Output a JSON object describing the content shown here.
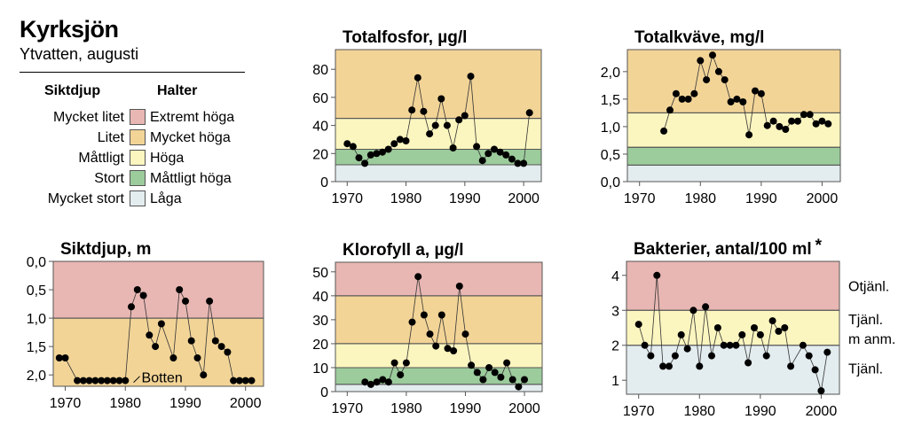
{
  "header": {
    "title": "Kyrksjön",
    "subtitle": "Ytvatten, augusti"
  },
  "legend": {
    "col1_heading": "Siktdjup",
    "col2_heading": "Halter",
    "rows": [
      {
        "siktdjup": "Mycket litet",
        "halter": "Extremt höga",
        "color": "#e8b7b3"
      },
      {
        "siktdjup": "Litet",
        "halter": "Mycket höga",
        "color": "#f2d497"
      },
      {
        "siktdjup": "Måttligt",
        "halter": "Höga",
        "color": "#fbf5bf"
      },
      {
        "siktdjup": "Stort",
        "halter": "Måttligt höga",
        "color": "#9ccb9c"
      },
      {
        "siktdjup": "Mycket stort",
        "halter": "Låga",
        "color": "#e3ecee"
      }
    ]
  },
  "chart_data": [
    {
      "type": "line",
      "title": "Totalfosfor, µg/l",
      "xlim": [
        1968,
        2003
      ],
      "ylim": [
        0,
        94
      ],
      "xticks": [
        1970,
        1980,
        1990,
        2000
      ],
      "yticks": [
        0,
        20,
        40,
        60,
        80
      ],
      "ytick_labels": [
        "0",
        "20",
        "40",
        "60",
        "80"
      ],
      "bands": [
        {
          "from": 0,
          "to": 12,
          "color": "#e3ecee"
        },
        {
          "from": 12,
          "to": 23,
          "color": "#9ccb9c"
        },
        {
          "from": 23,
          "to": 45,
          "color": "#fbf5bf"
        },
        {
          "from": 45,
          "to": 94,
          "color": "#f2d497"
        }
      ],
      "x": [
        1970,
        1971,
        1972,
        1973,
        1974,
        1975,
        1976,
        1977,
        1978,
        1979,
        1980,
        1981,
        1982,
        1983,
        1984,
        1985,
        1986,
        1987,
        1988,
        1989,
        1990,
        1991,
        1992,
        1993,
        1994,
        1995,
        1996,
        1997,
        1998,
        1999,
        2000,
        2001
      ],
      "y": [
        27,
        25,
        17,
        13,
        19,
        20,
        21,
        23,
        27,
        30,
        29,
        51,
        74,
        50,
        34,
        40,
        59,
        40,
        24,
        44,
        47,
        75,
        25,
        15,
        20,
        23,
        21,
        19,
        16,
        13,
        13,
        49
      ]
    },
    {
      "type": "line",
      "title": "Totalkväve, mg/l",
      "xlim": [
        1968,
        2003
      ],
      "ylim": [
        0,
        2.4
      ],
      "xticks": [
        1970,
        1980,
        1990,
        2000
      ],
      "yticks": [
        0,
        0.5,
        1.0,
        1.5,
        2.0
      ],
      "ytick_labels": [
        "0,0",
        "0,5",
        "1,0",
        "1,5",
        "2,0"
      ],
      "bands": [
        {
          "from": 0,
          "to": 0.3,
          "color": "#e3ecee"
        },
        {
          "from": 0.3,
          "to": 0.625,
          "color": "#9ccb9c"
        },
        {
          "from": 0.625,
          "to": 1.25,
          "color": "#fbf5bf"
        },
        {
          "from": 1.25,
          "to": 2.4,
          "color": "#f2d497"
        }
      ],
      "x": [
        1974,
        1975,
        1976,
        1977,
        1978,
        1979,
        1980,
        1981,
        1982,
        1983,
        1984,
        1985,
        1986,
        1987,
        1988,
        1989,
        1990,
        1991,
        1992,
        1993,
        1994,
        1995,
        1996,
        1997,
        1998,
        1999,
        2000,
        2001
      ],
      "y": [
        0.92,
        1.3,
        1.6,
        1.5,
        1.5,
        1.6,
        2.2,
        1.85,
        2.3,
        2.0,
        1.85,
        1.45,
        1.5,
        1.45,
        0.85,
        1.65,
        1.6,
        1.02,
        1.1,
        1.0,
        0.95,
        1.1,
        1.1,
        1.22,
        1.22,
        1.05,
        1.1,
        1.05
      ]
    },
    {
      "type": "line",
      "title": "Siktdjup, m",
      "xlim": [
        1968,
        2003
      ],
      "ylim": [
        2.2,
        0
      ],
      "inverted": true,
      "xticks": [
        1970,
        1980,
        1990,
        2000
      ],
      "yticks": [
        0,
        0.5,
        1.0,
        1.5,
        2.0
      ],
      "ytick_labels": [
        "0,0",
        "0,5",
        "1,0",
        "1,5",
        "2,0"
      ],
      "bands": [
        {
          "from": 0,
          "to": 1.0,
          "color": "#e8b7b3"
        },
        {
          "from": 1.0,
          "to": 2.2,
          "color": "#f2d497"
        }
      ],
      "x": [
        1969,
        1970,
        1972,
        1973,
        1974,
        1975,
        1976,
        1977,
        1978,
        1979,
        1980,
        1981,
        1982,
        1983,
        1984,
        1985,
        1986,
        1988,
        1989,
        1990,
        1991,
        1992,
        1993,
        1994,
        1995,
        1996,
        1997,
        1998,
        1999,
        2000,
        2001
      ],
      "y": [
        1.7,
        1.7,
        2.1,
        2.1,
        2.1,
        2.1,
        2.1,
        2.1,
        2.1,
        2.1,
        2.1,
        0.8,
        0.5,
        0.6,
        1.3,
        1.5,
        1.1,
        1.7,
        0.5,
        0.7,
        1.4,
        1.7,
        2.0,
        0.7,
        1.4,
        1.5,
        1.6,
        2.1,
        2.1,
        2.1,
        2.1
      ],
      "annotations": [
        {
          "text": "Botten",
          "x": 1982.7,
          "y": 2.07
        }
      ]
    },
    {
      "type": "line",
      "title": "Klorofyll a, µg/l",
      "xlim": [
        1968,
        2003
      ],
      "ylim": [
        0,
        54
      ],
      "xticks": [
        1970,
        1980,
        1990,
        2000
      ],
      "yticks": [
        0,
        10,
        20,
        30,
        40,
        50
      ],
      "ytick_labels": [
        "0",
        "10",
        "20",
        "30",
        "40",
        "50"
      ],
      "bands": [
        {
          "from": 0,
          "to": 3,
          "color": "#e3ecee"
        },
        {
          "from": 3,
          "to": 10,
          "color": "#9ccb9c"
        },
        {
          "from": 10,
          "to": 20,
          "color": "#fbf5bf"
        },
        {
          "from": 20,
          "to": 40,
          "color": "#f2d497"
        },
        {
          "from": 40,
          "to": 54,
          "color": "#e8b7b3"
        }
      ],
      "x": [
        1973,
        1974,
        1975,
        1976,
        1977,
        1978,
        1979,
        1980,
        1981,
        1982,
        1983,
        1984,
        1985,
        1986,
        1987,
        1988,
        1989,
        1990,
        1991,
        1992,
        1993,
        1994,
        1995,
        1996,
        1997,
        1998,
        1999,
        2000
      ],
      "y": [
        4,
        3,
        4,
        5,
        4,
        12,
        7,
        12,
        29,
        48,
        32,
        24,
        19,
        32,
        18,
        17,
        44,
        24,
        11,
        8,
        5,
        10,
        8,
        6,
        12,
        5,
        2,
        5
      ]
    },
    {
      "type": "line",
      "title": "Bakterier, antal/100 ml",
      "title_mark": "*",
      "xlim": [
        1968,
        2003
      ],
      "ylim": [
        0.6,
        4.4
      ],
      "xticks": [
        1970,
        1980,
        1990,
        2000
      ],
      "yticks": [
        1,
        2,
        3,
        4
      ],
      "ytick_labels": [
        "1",
        "2",
        "3",
        "4"
      ],
      "bands": [
        {
          "from": 0.6,
          "to": 2,
          "color": "#e3ecee"
        },
        {
          "from": 2,
          "to": 3,
          "color": "#fbf5bf"
        },
        {
          "from": 3,
          "to": 4.4,
          "color": "#e8b7b3"
        }
      ],
      "zone_labels": [
        "Otjänl.",
        "Tjänl.",
        "m anm.",
        "Tjänl."
      ],
      "x": [
        1970,
        1971,
        1972,
        1973,
        1974,
        1975,
        1976,
        1977,
        1978,
        1979,
        1980,
        1981,
        1982,
        1983,
        1984,
        1985,
        1986,
        1987,
        1988,
        1989,
        1990,
        1991,
        1992,
        1993,
        1994,
        1995,
        1997,
        1998,
        1999,
        2000,
        2001
      ],
      "y": [
        2.6,
        2.0,
        1.7,
        4.0,
        1.4,
        1.4,
        1.7,
        2.3,
        1.9,
        3.0,
        1.4,
        3.1,
        1.7,
        2.5,
        2.0,
        2.0,
        2.0,
        2.3,
        1.5,
        2.5,
        2.3,
        1.7,
        2.7,
        2.4,
        2.5,
        1.4,
        2.0,
        1.7,
        1.3,
        0.7,
        1.8
      ]
    }
  ]
}
